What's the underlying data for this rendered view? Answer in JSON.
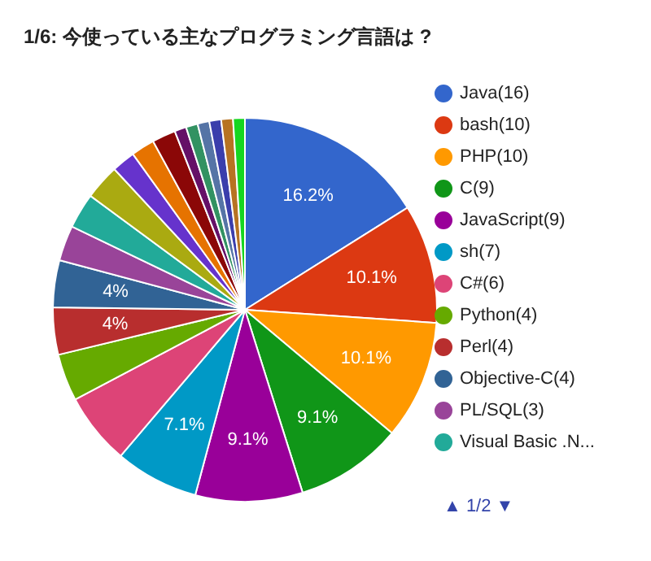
{
  "chart_data": {
    "type": "pie",
    "title": "1/6: 今使っている主なプログラミング言語は ?",
    "categories": [
      "Java(16)",
      "bash(10)",
      "PHP(10)",
      "C(9)",
      "JavaScript(9)",
      "sh(7)",
      "C#(6)",
      "Python(4)",
      "Perl(4)",
      "Objective-C(4)",
      "PL/SQL(3)",
      "Visual Basic .N...",
      null,
      null,
      null,
      null,
      null,
      null,
      null,
      null,
      null,
      null
    ],
    "values": [
      16.2,
      10.1,
      10.1,
      9.1,
      9.1,
      7.1,
      6.1,
      4,
      4,
      4,
      3,
      3,
      3,
      2,
      2,
      2,
      1,
      1,
      1,
      1,
      1,
      1
    ],
    "colors": [
      "#3366cc",
      "#dc3912",
      "#ff9900",
      "#109618",
      "#990099",
      "#0099c6",
      "#dd4477",
      "#66aa00",
      "#b82e2e",
      "#316395",
      "#994499",
      "#22aa99",
      "#aaaa11",
      "#6633cc",
      "#e67300",
      "#8b0707",
      "#651067",
      "#329262",
      "#5574a6",
      "#3b3eac",
      "#b77322",
      "#16d620"
    ],
    "value_labels": [
      "16.2%",
      "10.1%",
      "10.1%",
      "9.1%",
      "9.1%",
      "7.1%",
      null,
      null,
      "4%",
      "4%",
      null,
      null,
      null,
      null,
      null,
      null,
      null,
      null,
      null,
      null,
      null,
      null
    ],
    "legend": "right",
    "annotations": [
      "▲ 1/2 ▼"
    ]
  }
}
